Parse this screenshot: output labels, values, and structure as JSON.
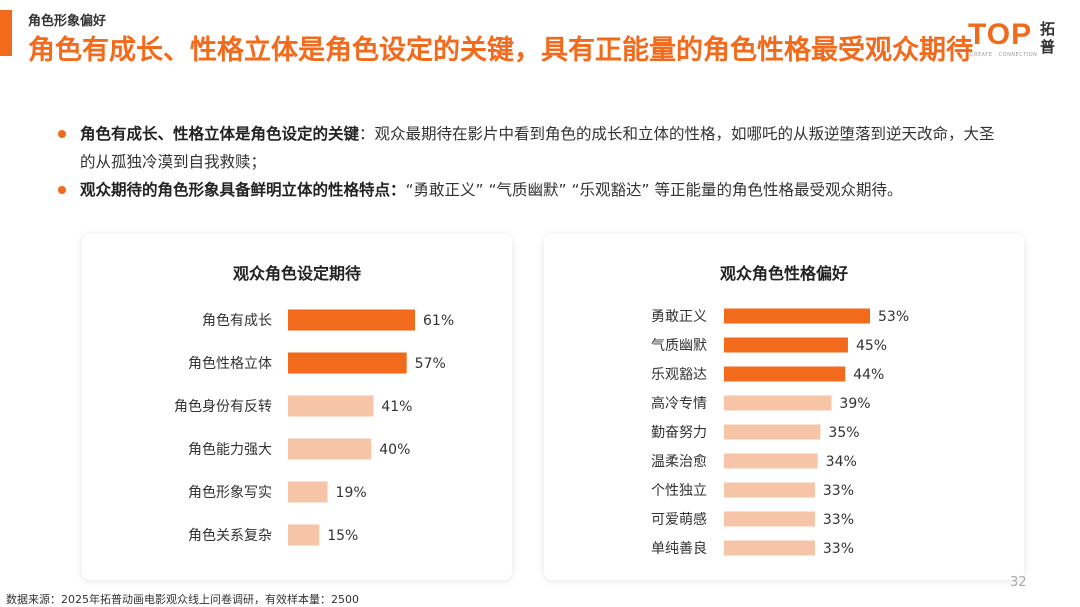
{
  "header": {
    "section_tag": "角色形象偏好",
    "headline": "角色有成长、性格立体是角色设定的关键，具有正能量的角色性格最受观众期待"
  },
  "logo": {
    "word": "TOP",
    "cn": "拓普",
    "sub": "CREATE · CONNECTION"
  },
  "bullets": [
    {
      "lead": "角色有成长、性格立体是角色设定的关键",
      "text": "：观众最期待在影片中看到角色的成长和立体的性格，如哪吒的从叛逆堕落到逆天改命，大圣的从孤独冷漠到自我救赎；"
    },
    {
      "lead": "观众期待的角色形象具备鲜明立体的性格特点：",
      "text": "“勇敢正义” “气质幽默” “乐观豁达” 等正能量的角色性格最受观众期待。"
    }
  ],
  "colors": {
    "accent": "#f26a1b",
    "highlight_bar": "#f26a1b",
    "light_bar": "#f6c4a6"
  },
  "chart_data": [
    {
      "type": "bar",
      "orientation": "horizontal",
      "title": "观众角色设定期待",
      "categories": [
        "角色有成长",
        "角色性格立体",
        "角色身份有反转",
        "角色能力强大",
        "角色形象写实",
        "角色关系复杂"
      ],
      "values": [
        61,
        57,
        41,
        40,
        19,
        15
      ],
      "value_labels": [
        "61%",
        "57%",
        "41%",
        "40%",
        "19%",
        "15%"
      ],
      "highlighted": [
        true,
        true,
        false,
        false,
        false,
        false
      ],
      "xlim": [
        0,
        61
      ]
    },
    {
      "type": "bar",
      "orientation": "horizontal",
      "title": "观众角色性格偏好",
      "categories": [
        "勇敢正义",
        "气质幽默",
        "乐观豁达",
        "高冷专情",
        "勤奋努力",
        "温柔治愈",
        "个性独立",
        "可爱萌感",
        "单纯善良"
      ],
      "values": [
        53,
        45,
        44,
        39,
        35,
        34,
        33,
        33,
        33
      ],
      "value_labels": [
        "53%",
        "45%",
        "44%",
        "39%",
        "35%",
        "34%",
        "33%",
        "33%",
        "33%"
      ],
      "highlighted": [
        true,
        true,
        true,
        false,
        false,
        false,
        false,
        false,
        false
      ],
      "xlim": [
        0,
        53
      ]
    }
  ],
  "footer": {
    "source": "数据来源：2025年拓普动画电影观众线上问卷调研，有效样本量：2500",
    "page_number": "32"
  }
}
